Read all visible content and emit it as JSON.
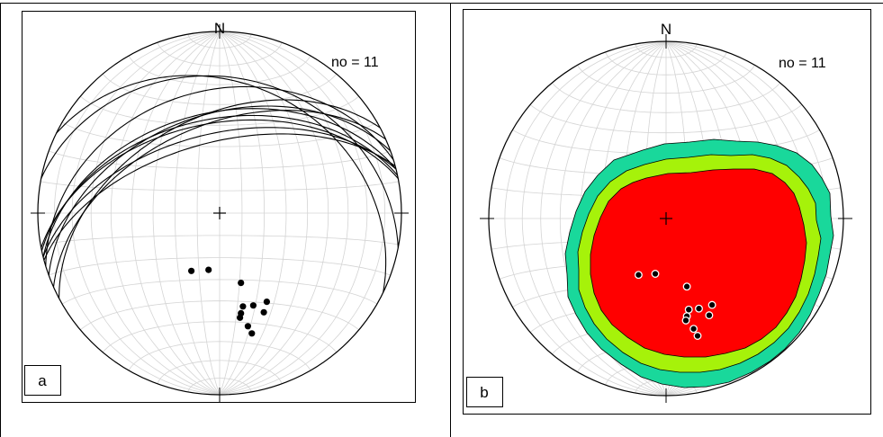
{
  "panels": [
    {
      "id": "a",
      "north_label": "N",
      "count_label": "no = 11",
      "panel_label": "a",
      "poles": [
        {
          "trend": 206,
          "plunge": 61
        },
        {
          "trend": 191,
          "plunge": 64
        },
        {
          "trend": 163,
          "plunge": 57
        },
        {
          "trend": 166,
          "plunge": 46
        },
        {
          "trend": 160,
          "plunge": 45
        },
        {
          "trend": 152,
          "plunge": 44
        },
        {
          "trend": 156,
          "plunge": 40
        },
        {
          "trend": 168,
          "plunge": 43
        },
        {
          "trend": 169,
          "plunge": 41
        },
        {
          "trend": 166,
          "plunge": 36
        },
        {
          "trend": 165,
          "plunge": 32
        }
      ]
    },
    {
      "id": "b",
      "north_label": "N",
      "count_label": "no = 11",
      "panel_label": "b",
      "poles": [
        {
          "trend": 206,
          "plunge": 61
        },
        {
          "trend": 191,
          "plunge": 64
        },
        {
          "trend": 163,
          "plunge": 57
        },
        {
          "trend": 166,
          "plunge": 46
        },
        {
          "trend": 160,
          "plunge": 45
        },
        {
          "trend": 152,
          "plunge": 44
        },
        {
          "trend": 156,
          "plunge": 40
        },
        {
          "trend": 168,
          "plunge": 43
        },
        {
          "trend": 169,
          "plunge": 41
        },
        {
          "trend": 166,
          "plunge": 36
        },
        {
          "trend": 165,
          "plunge": 32
        }
      ],
      "contour_colors": [
        "#19d89b",
        "#a6f20a",
        "#ff0000"
      ]
    }
  ],
  "colors": {
    "grid": "#d4d4d4",
    "frame": "#000000",
    "pole_fill": "#000000",
    "pole_outline_on_contour": "#ffffff"
  }
}
